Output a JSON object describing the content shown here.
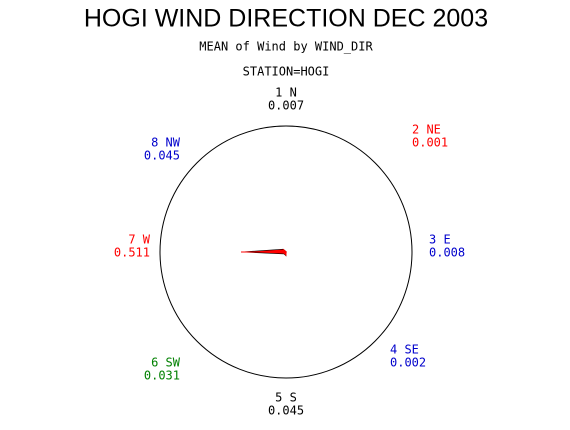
{
  "chart_data": {
    "type": "radar",
    "title": "HOGI WIND DIRECTION DEC 2003",
    "subtitle": "MEAN of Wind by WIND_DIR",
    "station": "STATION=HOGI",
    "categories": [
      "1 N",
      "2 NE",
      "3 E",
      "4 SE",
      "5 S",
      "6 SW",
      "7 W",
      "8 NW"
    ],
    "values": [
      0.007,
      0.001,
      0.008,
      0.002,
      0.045,
      0.031,
      0.511,
      0.045
    ],
    "label_colors": [
      "#000000",
      "#ff0000",
      "#0000cc",
      "#0000cc",
      "#000000",
      "#008000",
      "#ff0000",
      "#0000cc"
    ],
    "color": "#ff0000"
  }
}
